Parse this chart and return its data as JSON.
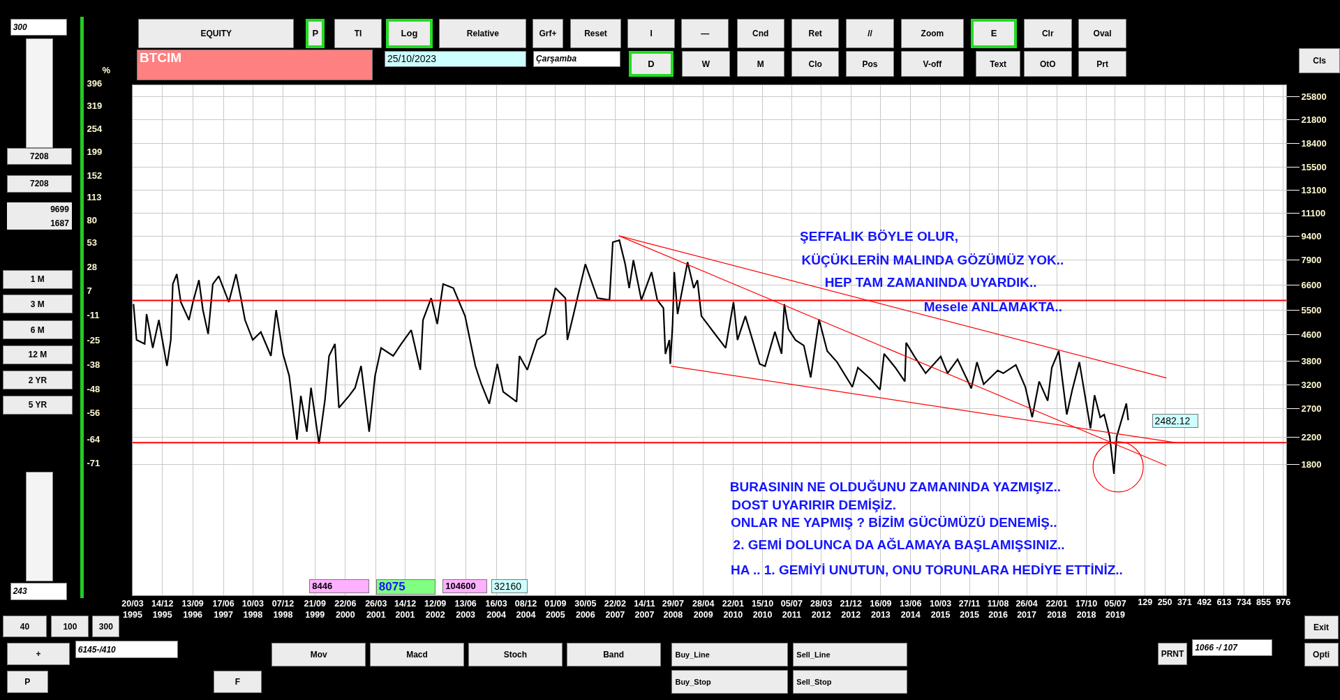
{
  "chart_data": {
    "type": "line",
    "title": "BTCIM",
    "log": "y",
    "grid": true,
    "xlim": [
      "1995-03-20",
      "2023-09-26"
    ],
    "ylim": [
      700,
      28000
    ],
    "x2lim": [
      -6076,
      994
    ],
    "x2ticks": [
      129,
      250,
      371,
      492,
      613,
      734,
      855,
      976
    ],
    "xticks": [
      {
        "value": "1995-03-20",
        "label": "20/03\n1995"
      },
      {
        "value": "1995-12-14",
        "label": "14/12\n1995"
      },
      {
        "value": "1996-09-13",
        "label": "13/09\n1996"
      },
      {
        "value": "1997-06-17",
        "label": "17/06\n1997"
      },
      {
        "value": "1998-03-10",
        "label": "10/03\n1998"
      },
      {
        "value": "1998-12-07",
        "label": "07/12\n1998"
      },
      {
        "value": "1999-09-21",
        "label": "21/09\n1999"
      },
      {
        "value": "2000-06-22",
        "label": "22/06\n2000"
      },
      {
        "value": "2001-03-26",
        "label": "26/03\n2001"
      },
      {
        "value": "2001-12-14",
        "label": "14/12\n2001"
      },
      {
        "value": "2002-09-12",
        "label": "12/09\n2002"
      },
      {
        "value": "2003-06-13",
        "label": "13/06\n2003"
      },
      {
        "value": "2004-03-16",
        "label": "16/03\n2004"
      },
      {
        "value": "2004-12-08",
        "label": "08/12\n2004"
      },
      {
        "value": "2005-09-01",
        "label": "01/09\n2005"
      },
      {
        "value": "2006-05-30",
        "label": "30/05\n2006"
      },
      {
        "value": "2007-02-22",
        "label": "22/02\n2007"
      },
      {
        "value": "2007-11-14",
        "label": "14/11\n2007"
      },
      {
        "value": "2008-07-29",
        "label": "29/07\n2008"
      },
      {
        "value": "2009-04-28",
        "label": "28/04\n2009"
      },
      {
        "value": "2010-01-22",
        "label": "22/01\n2010"
      },
      {
        "value": "2010-10-15",
        "label": "15/10\n2010"
      },
      {
        "value": "2011-07-05",
        "label": "05/07\n2011"
      },
      {
        "value": "2012-03-28",
        "label": "28/03\n2012"
      },
      {
        "value": "2012-12-21",
        "label": "21/12\n2012"
      },
      {
        "value": "2013-09-16",
        "label": "16/09\n2013"
      },
      {
        "value": "2014-06-13",
        "label": "13/06\n2014"
      },
      {
        "value": "2015-03-10",
        "label": "10/03\n2015"
      },
      {
        "value": "2015-11-27",
        "label": "27/11\n2015"
      },
      {
        "value": "2016-08-11",
        "label": "11/08\n2016"
      },
      {
        "value": "2017-04-26",
        "label": "26/04\n2017"
      },
      {
        "value": "2018-01-22",
        "label": "22/01\n2018"
      },
      {
        "value": "2018-10-17",
        "label": "17/10\n2018"
      },
      {
        "value": "2019-07-05",
        "label": "05/07\n2019"
      }
    ],
    "yticks": [
      1800,
      2200,
      2700,
      3200,
      3800,
      4600,
      5500,
      6600,
      7900,
      9400,
      11100,
      13100,
      15500,
      18400,
      21800,
      25800
    ],
    "ref_lines": [
      {
        "axis": "y",
        "value": 5900,
        "color": "#ff0000"
      },
      {
        "axis": "y",
        "value": 2110,
        "color": "#ff0000"
      }
    ],
    "series": [
      {
        "color": "#000000",
        "x": [
          "1995-03-28",
          "1995-04-25",
          "1995-07-07",
          "1995-07-24",
          "1995-09-18",
          "1995-11-12",
          "1996-01-24",
          "1996-02-28",
          "1996-03-17",
          "1996-04-22",
          "1996-05-28",
          "1996-08-10",
          "1996-09-15",
          "1996-11-08",
          "1996-12-14",
          "1997-01-30",
          "1997-03-13",
          "1997-05-06",
          "1997-08-05",
          "1997-10-09",
          "1997-11-22",
          "1997-12-29",
          "1998-03-09",
          "1998-05-21",
          "1998-08-20",
          "1998-10-06",
          "1998-12-07",
          "1999-02-01",
          "1999-04-12",
          "1999-05-17",
          "1999-07-10",
          "1999-08-17",
          "1999-10-28",
          "1999-12-21",
          "2000-01-27",
          "2000-03-20",
          "2000-04-25",
          "2000-07-26",
          "2000-09-18",
          "2000-11-11",
          "2001-01-23",
          "2001-03-17",
          "2001-05-11",
          "2001-08-28",
          "2001-11-08",
          "2002-02-07",
          "2002-04-30",
          "2002-05-24",
          "2002-08-06",
          "2002-09-30",
          "2002-11-22",
          "2003-02-22",
          "2003-06-08",
          "2003-09-09",
          "2003-11-01",
          "2004-01-13",
          "2004-03-25",
          "2004-05-17",
          "2004-09-15",
          "2004-10-11",
          "2004-12-21",
          "2005-03-20",
          "2005-06-02",
          "2005-09-01",
          "2005-11-30",
          "2005-12-18",
          "2006-02-12",
          "2006-05-29",
          "2006-09-15",
          "2007-01-02",
          "2007-02-01",
          "2007-04-01",
          "2007-05-24",
          "2007-06-29",
          "2007-08-06",
          "2007-10-17",
          "2008-01-17",
          "2008-03-09",
          "2008-05-03",
          "2008-05-21",
          "2008-06-26",
          "2008-07-04",
          "2008-07-25",
          "2008-08-09",
          "2008-09-08",
          "2008-12-07",
          "2009-02-01",
          "2009-03-06",
          "2009-04-11",
          "2009-07-29",
          "2009-11-16",
          "2010-01-26",
          "2010-03-03",
          "2010-05-13",
          "2010-09-19",
          "2010-11-07",
          "2011-02-04",
          "2011-04-05",
          "2011-04-30",
          "2011-06-06",
          "2011-08-08",
          "2011-10-23",
          "2011-12-24",
          "2012-03-08",
          "2012-05-21",
          "2012-08-18",
          "2013-01-03",
          "2013-02-22",
          "2013-06-14",
          "2013-09-10",
          "2013-10-17",
          "2014-01-26",
          "2014-04-22",
          "2014-05-04",
          "2014-07-18",
          "2014-10-27",
          "2015-03-12",
          "2015-05-13",
          "2015-08-11",
          "2015-12-13",
          "2016-02-02",
          "2016-04-03",
          "2016-08-08",
          "2016-09-27",
          "2017-01-18",
          "2017-04-14",
          "2017-06-15",
          "2017-08-17",
          "2017-11-02",
          "2017-12-09",
          "2018-02-10",
          "2018-04-23",
          "2018-06-12",
          "2018-08-15",
          "2018-10-04",
          "2018-11-23",
          "2018-12-30",
          "2019-02-19",
          "2019-03-27",
          "2019-05-16",
          "2019-06-23",
          "2019-07-18",
          "2019-09-07",
          "2019-10-13",
          "2019-10-30"
        ],
        "values": [
          5751,
          4436,
          4310,
          5350,
          4187,
          5124,
          3677,
          4436,
          6644,
          7141,
          5835,
          5124,
          5835,
          6838,
          5507,
          4630,
          6644,
          7038,
          5835,
          7141,
          6004,
          5124,
          4436,
          4698,
          3952,
          5507,
          4010,
          3421,
          2156,
          2962,
          2285,
          3139,
          2093,
          2878,
          3952,
          4310,
          2717,
          2962,
          3139,
          3677,
          2285,
          3421,
          4187,
          3952,
          4310,
          4766,
          3572,
          5124,
          6004,
          4979,
          6644,
          6454,
          5274,
          3677,
          3230,
          2796,
          3731,
          3049,
          2837,
          3952,
          3572,
          4436,
          4630,
          6454,
          6004,
          4436,
          5350,
          7675,
          6004,
          5920,
          8994,
          9125,
          7675,
          6454,
          7900,
          5920,
          7245,
          5920,
          5587,
          4010,
          4436,
          3731,
          4979,
          7245,
          5350,
          7786,
          6454,
          6838,
          5274,
          4698,
          4187,
          5835,
          4436,
          5274,
          3731,
          3667,
          4706,
          4015,
          5747,
          4800,
          4434,
          4260,
          3384,
          5148,
          4096,
          3779,
          3157,
          3632,
          3351,
          3095,
          4015,
          3632,
          3286,
          4347,
          3935,
          3487,
          3935,
          3487,
          3857,
          3126,
          3779,
          3221,
          3558,
          3487,
          3704,
          3157,
          2536,
          3286,
          2858,
          3632,
          4096,
          2587,
          3095,
          3779,
          2974,
          2340,
          2974,
          2536,
          2587,
          2204,
          1685,
          2204,
          2536,
          2802,
          2482.12
        ]
      },
      {
        "type": "line",
        "color": "#ff0000",
        "x": [
          "2007-03-28",
          "2020-10-10"
        ],
        "values": [
          9419,
          3370
        ]
      },
      {
        "type": "line",
        "color": "#ff0000",
        "x": [
          "2007-03-28",
          "2020-10-10"
        ],
        "values": [
          9419,
          1787
        ]
      },
      {
        "type": "line",
        "color": "#ff0000",
        "x": [
          "2008-07-10",
          "2020-12-27"
        ],
        "values": [
          3672,
          2112
        ]
      }
    ],
    "annotations": [
      "ŞEFFALIK  BÖYLE  OLUR,",
      "KÜÇÜKLERİN MALINDA  GÖZÜMÜZ  YOK..",
      "HEP  TAM ZAMANINDA  UYARDIK..",
      "Mesele  ANLAMAKTA..",
      "BURASININ  NE OLDUĞUNU  ZAMANINDA YAZMIŞIZ..",
      "DOST UYARIRIR DEMİŞİZ.",
      "ONLAR  NE YAPMIŞ  ?  BİZİM GÜCÜMÜZÜ  DENEMİŞ..",
      "2. GEMİ DOLUNCA DA  AĞLAMAYA BAŞLAMIŞSINIZ..",
      "HA ..  1. GEMİYİ UNUTUN, ONU TORUNLARA HEDİYE ETTİNİZ..",
      "Çarşamba",
      "25/10/2023",
      "8446",
      "8075",
      "104600",
      "32160",
      "EQUITY",
      "P",
      "TI",
      "Log",
      "Relative",
      "Grf+",
      "Reset",
      "I",
      "—",
      "Cnd",
      "Ret",
      "//",
      "Zoom",
      "E",
      "Clr",
      "Oval",
      "D",
      "W",
      "M",
      "Clo",
      "Pos",
      "V-off",
      "Text",
      "OtO",
      "Prt",
      "Cls",
      "300",
      "7208",
      "7208",
      "9699",
      "1687",
      "1 M",
      "3 M",
      "6 M",
      "12 M",
      "2 YR",
      "5 YR",
      "243",
      "40",
      "100",
      "300",
      "+",
      "6145-/410",
      "P",
      "F",
      "Mov",
      "Macd",
      "Stoch",
      "Band",
      "Buy_Line",
      "Sell_Line",
      "Buy_Stop",
      "Sell_Stop",
      "PRNT",
      "1066 -/ 107",
      "Exit",
      "Opti",
      "2482.12",
      "%",
      "396",
      "319",
      "254",
      "199",
      "152",
      "113",
      "80",
      "53",
      "28",
      "7",
      "-11",
      "-25",
      "-38",
      "-48",
      "-56",
      "-64",
      "-71"
    ]
  }
}
